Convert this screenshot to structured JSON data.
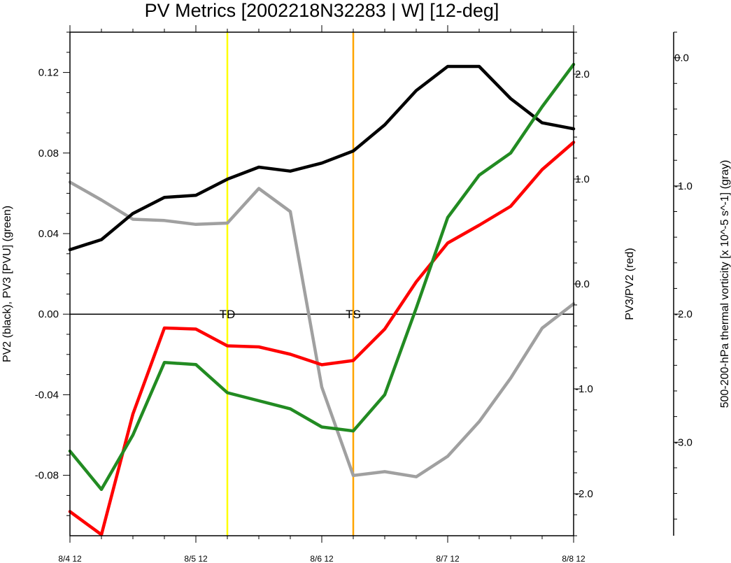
{
  "chart_data": {
    "type": "line",
    "title": "PV Metrics [2002218N32283 | W] [12-deg]",
    "xlabel": "",
    "x_tick_labels": [
      "8/4 12",
      "8/5 12",
      "8/6 12",
      "8/7 12",
      "8/8 12"
    ],
    "x_tick_positions": [
      0,
      4,
      8,
      12,
      16
    ],
    "xlim": [
      0,
      16
    ],
    "left_axis": {
      "label": "PV2 (black), PV3 [PVU] (green)",
      "ylim": [
        -0.11,
        0.14
      ],
      "ticks": [
        0.12,
        0.08,
        0.04,
        0.0,
        -0.04,
        -0.08
      ],
      "tick_labels": [
        "0.12",
        "0.08",
        "0.04",
        "0.00",
        "-0.04",
        "-0.08"
      ]
    },
    "right_axis": {
      "label": "PV3/PV2 (red)",
      "ylim": [
        -2.4,
        2.4
      ],
      "ticks": [
        2.0,
        1.0,
        0.0,
        -1.0,
        -2.0
      ],
      "tick_labels": [
        "2.0",
        "1.0",
        "0.0",
        "-1.0",
        "-2.0"
      ]
    },
    "far_right_axis": {
      "label": "500-200-hPa thermal vorticity [x 10^-5 s^-1] (gray)",
      "ylim": [
        -3.73,
        0.2
      ],
      "ticks": [
        0.0,
        -1.0,
        -2.0,
        -3.0
      ],
      "tick_labels": [
        "0.0",
        "-1.0",
        "-2.0",
        "-3.0"
      ]
    },
    "series": [
      {
        "color": "#000000",
        "axis": "left",
        "x": [
          0,
          1,
          2,
          3,
          4,
          5,
          6,
          7,
          8,
          9,
          10,
          11,
          12,
          13,
          14,
          15,
          16
        ],
        "values": [
          0.032,
          0.037,
          0.05,
          0.058,
          0.059,
          0.067,
          0.073,
          0.071,
          0.075,
          0.081,
          0.094,
          0.111,
          0.123,
          0.123,
          0.107,
          0.095,
          0.092
        ]
      },
      {
        "color": "#228B22",
        "axis": "left",
        "x": [
          0,
          1,
          2,
          3,
          4,
          5,
          6,
          7,
          8,
          9,
          10,
          11,
          12,
          13,
          14,
          15,
          16
        ],
        "values": [
          -0.068,
          -0.087,
          -0.06,
          -0.024,
          -0.025,
          -0.039,
          -0.043,
          -0.047,
          -0.056,
          -0.058,
          -0.04,
          0.003,
          0.048,
          0.069,
          0.08,
          0.103,
          0.124
        ]
      },
      {
        "color": "#FF0000",
        "axis": "right",
        "x": [
          0,
          1,
          2,
          3,
          4,
          5,
          6,
          7,
          8,
          9,
          10,
          11,
          12,
          13,
          14,
          15,
          16
        ],
        "values": [
          -2.17,
          -2.39,
          -1.24,
          -0.42,
          -0.43,
          -0.59,
          -0.6,
          -0.67,
          -0.77,
          -0.73,
          -0.43,
          0.02,
          0.39,
          0.56,
          0.74,
          1.09,
          1.35
        ]
      },
      {
        "color": "#A0A0A0",
        "axis": "far_right",
        "x": [
          0,
          1,
          2,
          3,
          4,
          5,
          6,
          7,
          8,
          9,
          10,
          11,
          12,
          13,
          14,
          15,
          16
        ],
        "values": [
          -0.97,
          -1.11,
          -1.26,
          -1.27,
          -1.3,
          -1.29,
          -1.02,
          -1.2,
          -2.57,
          -3.26,
          -3.23,
          -3.27,
          -3.11,
          -2.84,
          -2.5,
          -2.11,
          -1.92
        ]
      }
    ],
    "vertical_lines": [
      {
        "x": 5,
        "color": "#FFFF00",
        "label": "TD"
      },
      {
        "x": 9,
        "color": "#FFA500",
        "label": "TS"
      }
    ],
    "zero_line": {
      "axis": "left",
      "value": 0.0,
      "color": "#000000"
    },
    "grid": false,
    "legend": "none"
  }
}
